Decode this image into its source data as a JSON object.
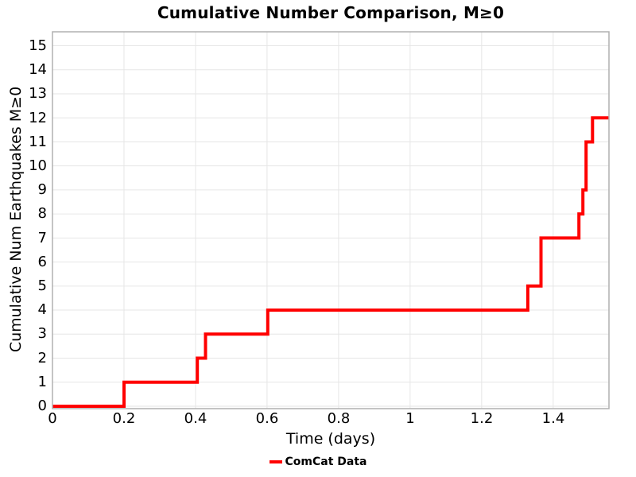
{
  "chart_data": {
    "type": "line",
    "step": true,
    "title": "Cumulative Number Comparison, M≥0",
    "xlabel": "Time (days)",
    "ylabel": "Cumulative Num Earthquakes M≥0",
    "xlim": [
      0,
      1.556
    ],
    "ylim": [
      -0.1,
      15.58
    ],
    "grid": true,
    "legend_position": "bottom-center",
    "xticks": {
      "values": [
        0,
        0.2,
        0.4,
        0.6,
        0.8,
        1,
        1.2,
        1.4
      ],
      "labels": [
        "0",
        "0.2",
        "0.4",
        "0.6",
        "0.8",
        "1",
        "1.2",
        "1.4"
      ]
    },
    "yticks": {
      "values": [
        0,
        1,
        2,
        3,
        4,
        5,
        6,
        7,
        8,
        9,
        10,
        11,
        12,
        13,
        14,
        15
      ],
      "labels": [
        "0",
        "1",
        "2",
        "3",
        "4",
        "5",
        "6",
        "7",
        "8",
        "9",
        "10",
        "11",
        "12",
        "13",
        "14",
        "15"
      ]
    },
    "series": [
      {
        "name": "ComCat Data",
        "color": "#ff0000",
        "line_width": 4,
        "points": [
          [
            0,
            0
          ],
          [
            0.2,
            0
          ],
          [
            0.2,
            1
          ],
          [
            0.405,
            1
          ],
          [
            0.405,
            2
          ],
          [
            0.428,
            2
          ],
          [
            0.428,
            3
          ],
          [
            0.602,
            3
          ],
          [
            0.602,
            4
          ],
          [
            1.329,
            4
          ],
          [
            1.329,
            5
          ],
          [
            1.366,
            5
          ],
          [
            1.366,
            7
          ],
          [
            1.472,
            7
          ],
          [
            1.472,
            8
          ],
          [
            1.483,
            8
          ],
          [
            1.483,
            9
          ],
          [
            1.492,
            9
          ],
          [
            1.492,
            11
          ],
          [
            1.51,
            11
          ],
          [
            1.51,
            12
          ],
          [
            1.556,
            12
          ]
        ]
      }
    ],
    "colors": {
      "gridline": "#e6e6e6",
      "border": "#b0b0b0",
      "text": "#000000",
      "background": "#ffffff"
    }
  }
}
